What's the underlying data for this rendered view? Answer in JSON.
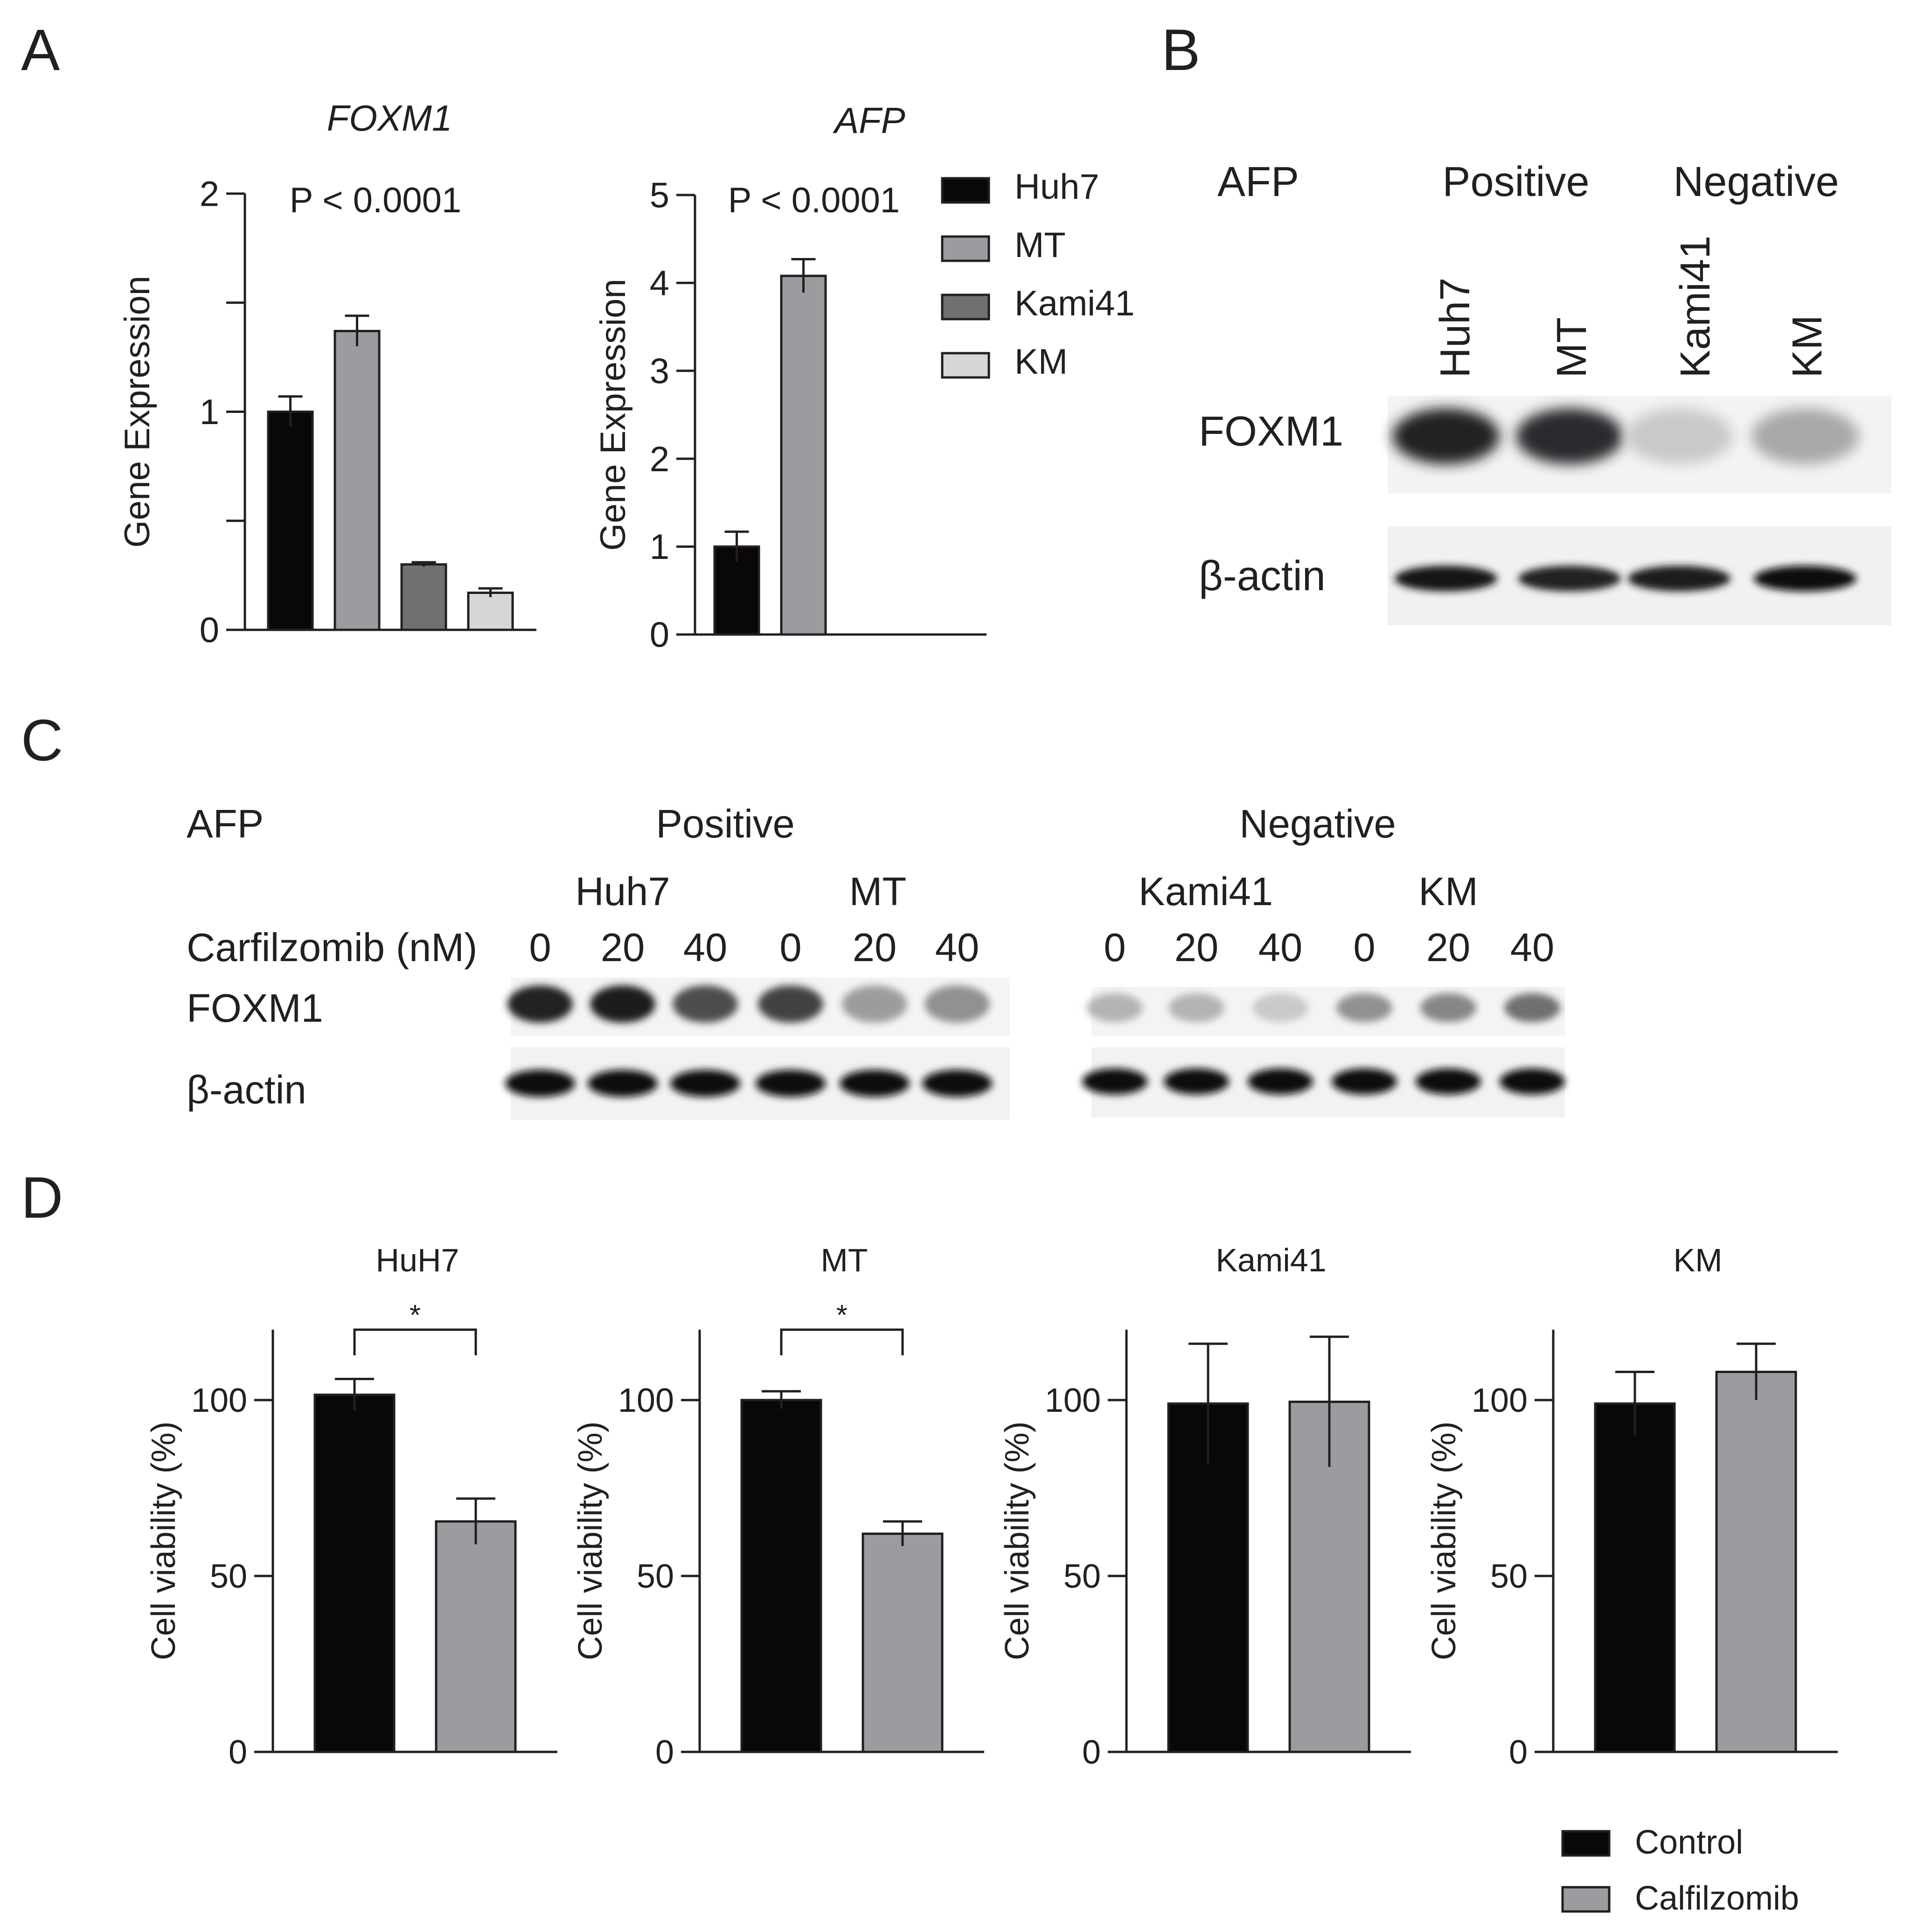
{
  "panel_labels": {
    "a": "A",
    "b": "B",
    "c": "C",
    "d": "D"
  },
  "colors": {
    "huh7": "#0a0708",
    "mt": "#9c9ca0",
    "kami41": "#707073",
    "km": "#d6d6d6",
    "control": "#0a0708",
    "calfilzomib": "#9c9ca0",
    "axis": "#231f20"
  },
  "chart_data": [
    {
      "id": "A-FOXM1",
      "type": "bar",
      "title": "FOXM1",
      "title_italic": true,
      "annotation": "P < 0.0001",
      "ylabel": "Gene Expression",
      "ylim": [
        0,
        2
      ],
      "yticks": [
        0,
        0.5,
        1,
        1.5,
        2
      ],
      "ytick_labels": [
        "0",
        "",
        "1",
        "",
        "2"
      ],
      "categories": [
        "Huh7",
        "MT",
        "Kami41",
        "KM"
      ],
      "values": [
        1.0,
        1.37,
        0.3,
        0.17
      ],
      "errors": [
        0.07,
        0.07,
        0.01,
        0.02
      ],
      "colors": [
        "#0a0708",
        "#9c9ca0",
        "#707073",
        "#d6d6d6"
      ]
    },
    {
      "id": "A-AFP",
      "type": "bar",
      "title": "AFP",
      "title_italic": true,
      "annotation": "P < 0.0001",
      "ylabel": "Gene Expression",
      "ylim": [
        0,
        5
      ],
      "yticks": [
        0,
        1,
        2,
        3,
        4,
        5
      ],
      "ytick_labels": [
        "0",
        "1",
        "2",
        "3",
        "4",
        "5"
      ],
      "categories": [
        "Huh7",
        "MT",
        "Kami41",
        "KM"
      ],
      "values": [
        1.0,
        4.08,
        null,
        null
      ],
      "errors": [
        0.17,
        0.19,
        null,
        null
      ],
      "colors": [
        "#0a0708",
        "#9c9ca0",
        "#707073",
        "#d6d6d6"
      ],
      "legend": [
        "Huh7",
        "MT",
        "Kami41",
        "KM"
      ],
      "legend_placement": "right"
    },
    {
      "id": "D-HuH7",
      "type": "bar",
      "title": "HuH7",
      "ylabel": "Cell viability (%)",
      "ylim": [
        0,
        120
      ],
      "yticks": [
        0,
        50,
        100
      ],
      "categories": [
        "Control",
        "Calfilzomib"
      ],
      "values": [
        101.5,
        65.5
      ],
      "errors": [
        4.5,
        6.5
      ],
      "colors": [
        "#0a0708",
        "#9c9ca0"
      ],
      "significance": "*"
    },
    {
      "id": "D-MT",
      "type": "bar",
      "title": "MT",
      "ylabel": "Cell viability (%)",
      "ylim": [
        0,
        120
      ],
      "yticks": [
        0,
        50,
        100
      ],
      "categories": [
        "Control",
        "Calfilzomib"
      ],
      "values": [
        100,
        62
      ],
      "errors": [
        2.5,
        3.5
      ],
      "colors": [
        "#0a0708",
        "#9c9ca0"
      ],
      "significance": "*"
    },
    {
      "id": "D-Kami41",
      "type": "bar",
      "title": "Kami41",
      "ylabel": "Cell viability (%)",
      "ylim": [
        0,
        120
      ],
      "yticks": [
        0,
        50,
        100
      ],
      "categories": [
        "Control",
        "Calfilzomib"
      ],
      "values": [
        99,
        99.5
      ],
      "errors": [
        17,
        18.5
      ],
      "colors": [
        "#0a0708",
        "#9c9ca0"
      ]
    },
    {
      "id": "D-KM",
      "type": "bar",
      "title": "KM",
      "ylabel": "Cell viability (%)",
      "ylim": [
        0,
        120
      ],
      "yticks": [
        0,
        50,
        100
      ],
      "categories": [
        "Control",
        "Calfilzomib"
      ],
      "values": [
        99,
        108
      ],
      "errors": [
        9,
        8
      ],
      "colors": [
        "#0a0708",
        "#9c9ca0"
      ],
      "legend": [
        "Control",
        "Calfilzomib"
      ],
      "legend_placement": "bottom-right"
    }
  ],
  "blot_b": {
    "afp_label": "AFP",
    "positive_label": "Positive",
    "negative_label": "Negative",
    "lanes": [
      "Huh7",
      "MT",
      "Kami41",
      "KM"
    ],
    "foxm1_label": "FOXM1",
    "actin_label": "β-actin",
    "foxm1_intensity": [
      0.9,
      0.85,
      0.15,
      0.3
    ],
    "actin_intensity": [
      0.95,
      0.9,
      0.92,
      1.0
    ]
  },
  "blot_c": {
    "afp_label": "AFP",
    "positive_label": "Positive",
    "negative_label": "Negative",
    "lines_positive": [
      "Huh7",
      "MT"
    ],
    "lines_negative": [
      "Kami41",
      "KM"
    ],
    "treatment_label": "Carfilzomib (nM)",
    "doses": [
      "0",
      "20",
      "40",
      "0",
      "20",
      "40"
    ],
    "foxm1_label": "FOXM1",
    "actin_label": "β-actin",
    "foxm1_positive": [
      0.9,
      0.92,
      0.7,
      0.75,
      0.35,
      0.4
    ],
    "foxm1_negative": [
      0.25,
      0.25,
      0.15,
      0.4,
      0.45,
      0.55
    ],
    "actin_positive": [
      1,
      1,
      1,
      1,
      1,
      1
    ],
    "actin_negative": [
      1,
      1,
      1,
      1,
      1,
      1
    ]
  }
}
